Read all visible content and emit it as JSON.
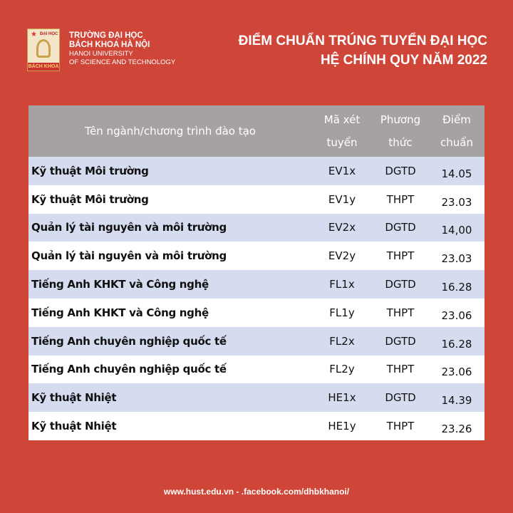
{
  "header": {
    "logo_top": "ĐẠI HỌC",
    "logo_bottom": "BÁCH KHOA",
    "uni_vn_1": "TRƯỜNG ĐẠI HỌC",
    "uni_vn_2": "BÁCH KHOA HÀ NỘI",
    "uni_en_1": "HANOI UNIVERSITY",
    "uni_en_2": "OF SCIENCE AND TECHNOLOGY",
    "title_1": "ĐIỂM CHUẨN TRÚNG TUYỂN ĐẠI HỌC",
    "title_2": "HỆ CHÍNH QUY NĂM 2022"
  },
  "table": {
    "headers": {
      "name": "Tên ngành/chương trình đào tạo",
      "code_1": "Mã xét",
      "code_2": "tuyển",
      "method_1": "Phương",
      "method_2": "thức",
      "score_1": "Điểm",
      "score_2": "chuẩn"
    },
    "rows": [
      {
        "name": "Kỹ thuật Môi trường",
        "code": "EV1x",
        "method": "DGTD",
        "score": "14.05"
      },
      {
        "name": "Kỹ thuật Môi trường",
        "code": "EV1y",
        "method": "THPT",
        "score": "23.03"
      },
      {
        "name": "Quản lý tài nguyên và môi trường",
        "code": "EV2x",
        "method": "DGTD",
        "score": "14,00"
      },
      {
        "name": "Quản lý tài nguyên và môi trường",
        "code": "EV2y",
        "method": "THPT",
        "score": "23.03"
      },
      {
        "name": "Tiếng Anh KHKT và Công nghệ",
        "code": "FL1x",
        "method": "DGTD",
        "score": "16.28"
      },
      {
        "name": "Tiếng Anh KHKT và Công nghệ",
        "code": "FL1y",
        "method": "THPT",
        "score": "23.06"
      },
      {
        "name": "Tiếng Anh chuyên nghiệp quốc tế",
        "code": "FL2x",
        "method": "DGTD",
        "score": "16.28"
      },
      {
        "name": "Tiếng Anh chuyên nghiệp quốc tế",
        "code": "FL2y",
        "method": "THPT",
        "score": "23.06"
      },
      {
        "name": "Kỹ thuật Nhiệt",
        "code": "HE1x",
        "method": "DGTD",
        "score": "14.39"
      },
      {
        "name": "Kỹ thuật Nhiệt",
        "code": "HE1y",
        "method": "THPT",
        "score": "23.26"
      }
    ]
  },
  "footer": {
    "text": "www.hust.edu.vn  - .facebook.com/dhbkhanoi/"
  }
}
